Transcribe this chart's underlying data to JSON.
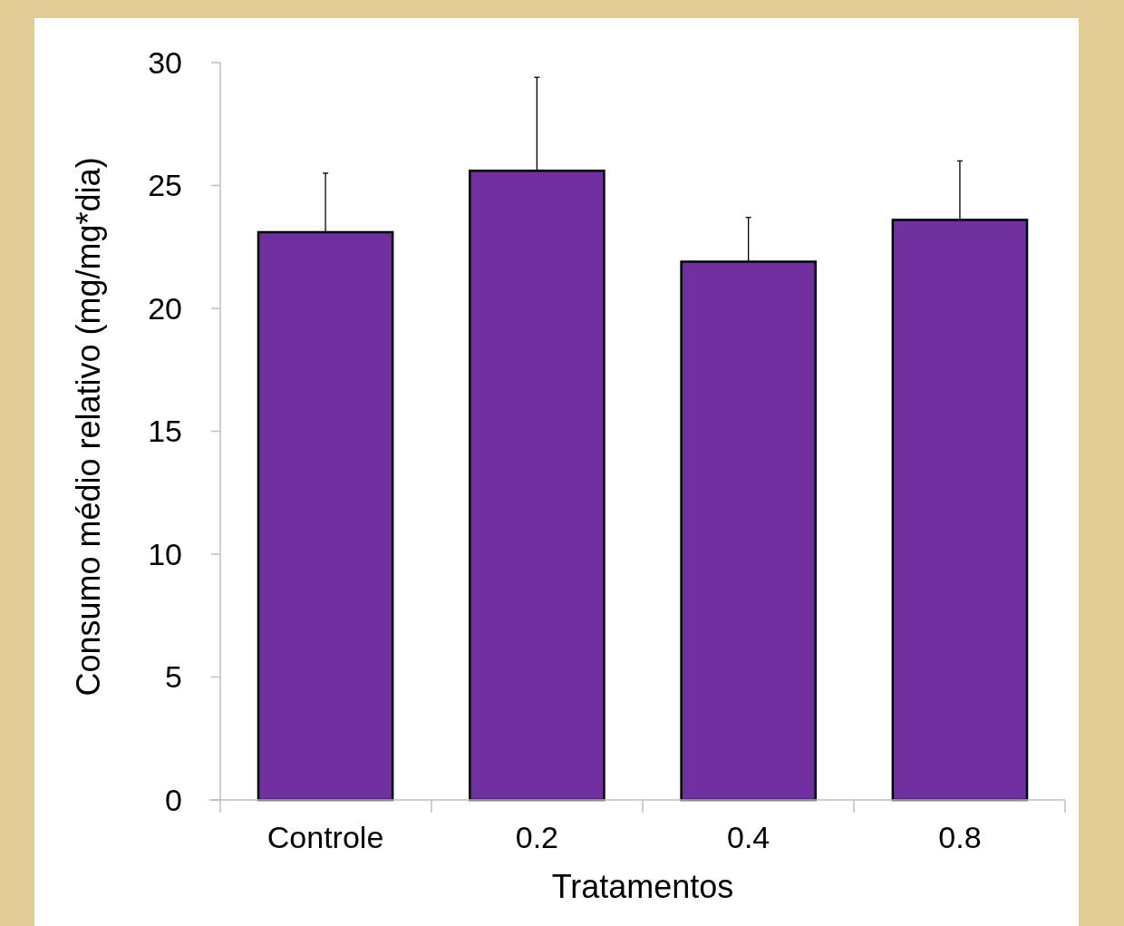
{
  "chart_data": {
    "type": "bar",
    "xlabel": "Tratamentos",
    "ylabel": "Consumo médio relativo (mg/mg*dia)",
    "categories": [
      "Controle",
      "0.2",
      "0.4",
      "0.8"
    ],
    "values": [
      23.1,
      25.6,
      21.9,
      23.6
    ],
    "errors": [
      [
        23.1,
        25.5
      ],
      [
        25.6,
        29.4
      ],
      [
        21.9,
        23.7
      ],
      [
        23.6,
        26.0
      ]
    ],
    "color": "#7030a0",
    "ylim": [
      0,
      30
    ],
    "yticks": [
      0,
      5,
      10,
      15,
      20,
      25,
      30
    ],
    "grid": false
  }
}
